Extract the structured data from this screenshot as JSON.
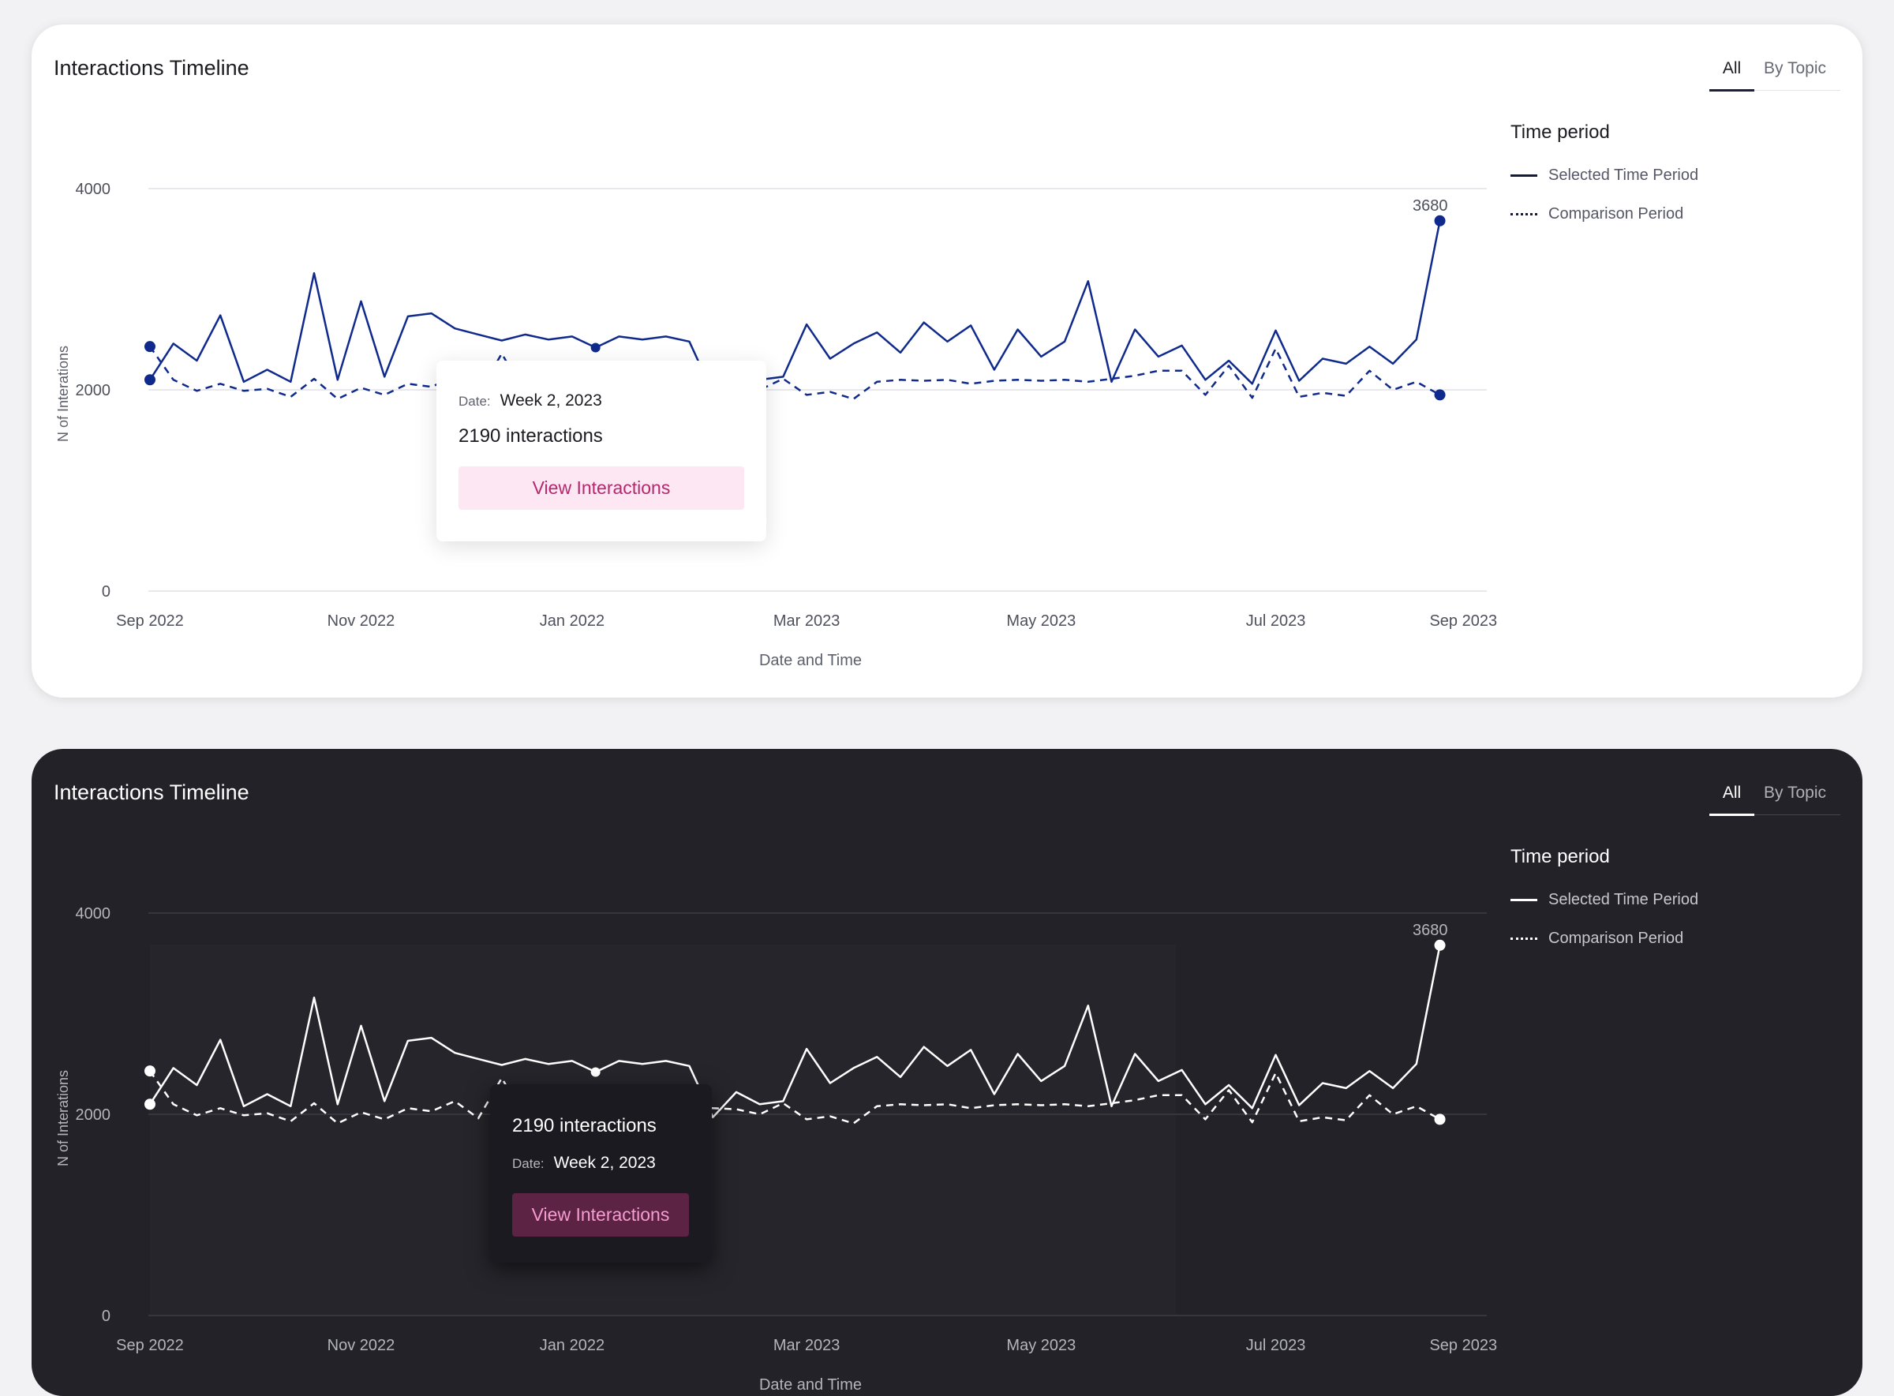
{
  "header": {
    "title": "Interactions Timeline",
    "tabs": [
      {
        "label": "All",
        "active": true
      },
      {
        "label": "By Topic",
        "active": false
      }
    ]
  },
  "legend": {
    "title": "Time period",
    "items": [
      {
        "label": "Selected Time Period",
        "style": "solid"
      },
      {
        "label": "Comparison Period",
        "style": "dashed"
      }
    ]
  },
  "tooltip": {
    "date_label": "Date:",
    "date_value": "Week 2, 2023",
    "count_text": "2190 interactions",
    "button_label": "View Interactions"
  },
  "themes": {
    "light": {
      "card": "#ffffff",
      "line": "#0f2a8c",
      "accent_bg": "#fde7f3",
      "accent_text": "#b5286e"
    },
    "dark": {
      "card": "#232228",
      "line": "#ffffff",
      "accent_bg": "#5c2345",
      "accent_text": "#f59cd0"
    }
  },
  "chart_data": {
    "type": "line",
    "xlabel": "Date and Time",
    "ylabel": "N of Interations",
    "ylim": [
      0,
      4000
    ],
    "yticks": [
      0,
      2000,
      4000
    ],
    "grid": true,
    "legend_position": "right",
    "x_tick_labels": [
      "Sep 2022",
      "Nov 2022",
      "Jan 2022",
      "Mar 2023",
      "May 2023",
      "Jul 2023",
      "Sep 2023"
    ],
    "x_tick_index": [
      0,
      9,
      18,
      28,
      38,
      48,
      56
    ],
    "x_count": 58,
    "end_label": "3680",
    "series": [
      {
        "name": "Selected Time Period",
        "style": "solid",
        "values": [
          2100,
          2460,
          2290,
          2740,
          2080,
          2200,
          2080,
          3160,
          2100,
          2880,
          2130,
          2730,
          2760,
          2610,
          2550,
          2490,
          2550,
          2500,
          2530,
          2420,
          2530,
          2500,
          2530,
          2480,
          1970,
          2220,
          2100,
          2130,
          2650,
          2310,
          2460,
          2570,
          2370,
          2670,
          2480,
          2640,
          2200,
          2600,
          2330,
          2480,
          3080,
          2080,
          2600,
          2330,
          2440,
          2100,
          2290,
          2060,
          2590,
          2090,
          2310,
          2260,
          2430,
          2260,
          2500,
          3680
        ]
      },
      {
        "name": "Comparison Period",
        "style": "dashed",
        "values": [
          2430,
          2100,
          1990,
          2060,
          1990,
          2010,
          1930,
          2110,
          1910,
          2020,
          1950,
          2060,
          2030,
          2130,
          1960,
          2360,
          1960,
          2030,
          2150,
          2050,
          2140,
          2050,
          2110,
          2080,
          2060,
          2050,
          2000,
          2110,
          1950,
          1980,
          1910,
          2080,
          2100,
          2090,
          2100,
          2060,
          2090,
          2100,
          2090,
          2100,
          2080,
          2110,
          2140,
          2190,
          2190,
          1950,
          2240,
          1920,
          2410,
          1930,
          1970,
          1940,
          2190,
          2000,
          2080,
          1950
        ]
      }
    ]
  }
}
